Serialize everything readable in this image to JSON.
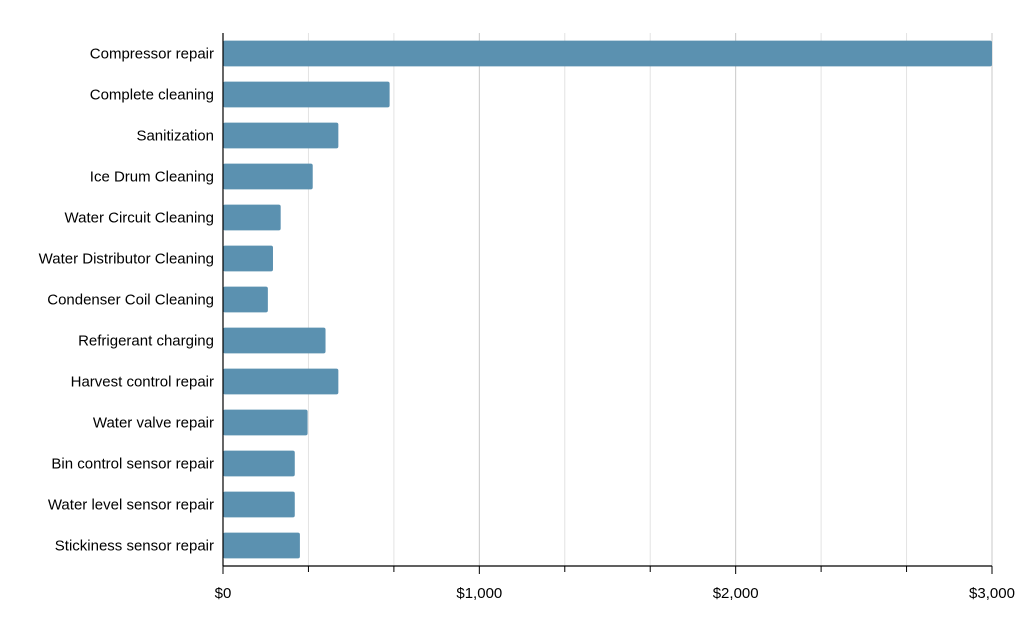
{
  "chart_data": {
    "type": "bar",
    "orientation": "horizontal",
    "title": "",
    "xlabel": "",
    "ylabel": "",
    "categories": [
      "Compressor repair",
      "Complete cleaning",
      "Sanitization",
      "Ice Drum Cleaning",
      "Water Circuit Cleaning",
      "Water Distributor Cleaning",
      "Condenser Coil Cleaning",
      "Refrigerant charging",
      "Harvest control repair",
      "Water valve repair",
      "Bin control sensor repair",
      "Water level sensor repair",
      "Stickiness sensor repair"
    ],
    "values": [
      3000,
      650,
      450,
      350,
      225,
      195,
      175,
      400,
      450,
      330,
      280,
      280,
      300
    ],
    "xlim": [
      0,
      3000
    ],
    "x_major_ticks": [
      0,
      1000,
      2000,
      3000
    ],
    "x_tick_labels": [
      "$0",
      "$1,000",
      "$2,000",
      "$3,000"
    ],
    "x_minor_tick_step": 333.333,
    "grid": "vertical",
    "legend": "none",
    "colors": {
      "bar": "#5b91b0",
      "major_grid": "#c8c8c8",
      "minor_grid": "#e3e3e3",
      "axis": "#000000"
    }
  }
}
